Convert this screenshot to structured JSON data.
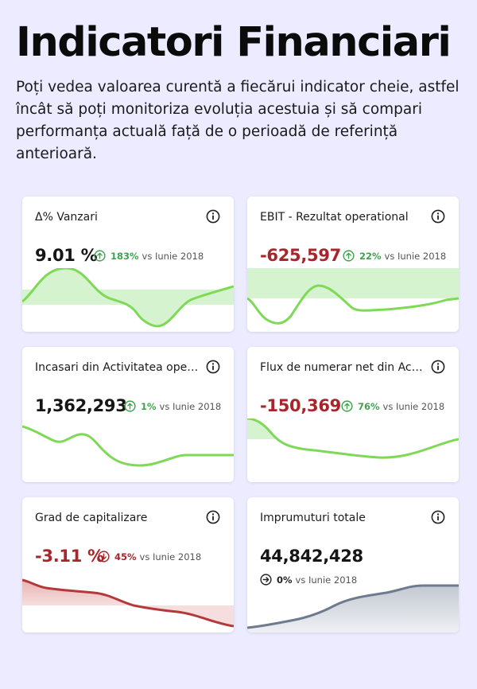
{
  "header": {
    "title": "Indicatori Financiari",
    "subtitle": "Poți vedea valoarea curentă a fiecărui indicator cheie, astfel încât să poți monitoriza evoluția acestuia și să compari performanța actuală față de o perioadă de referință anterioară."
  },
  "cards": [
    {
      "title": "Δ% Vanzari",
      "value": "9.01 %",
      "pct": "183%",
      "compare": "vs Iunie 2018",
      "direction": "up"
    },
    {
      "title": "EBIT - Rezultat operational",
      "value": "-625,597",
      "pct": "22%",
      "compare": "vs Iunie 2018",
      "direction": "up"
    },
    {
      "title": "Incasari din Activitatea operationala",
      "value": "1,362,293",
      "pct": "1%",
      "compare": "vs Iunie 2018",
      "direction": "up"
    },
    {
      "title": "Flux de numerar net din Activitatea operationala",
      "value": "-150,369",
      "pct": "76%",
      "compare": "vs Iunie 2018",
      "direction": "up"
    },
    {
      "title": "Grad de capitalizare",
      "value": "-3.11 %",
      "pct": "45%",
      "compare": "vs Iunie 2018",
      "direction": "down"
    },
    {
      "title": "Imprumuturi totale",
      "value": "44,842,428",
      "pct": "0%",
      "compare": "vs Iunie 2018",
      "direction": "flat"
    }
  ],
  "icons": {
    "info": "info-circle-icon",
    "up": "arrow-up-circle-icon",
    "down": "arrow-down-circle-icon",
    "flat": "arrow-right-circle-icon"
  },
  "colors": {
    "positive": "#7ed957",
    "negative": "#b33a3a",
    "neutral": "#6e7a8e",
    "background": "#ecebff"
  }
}
